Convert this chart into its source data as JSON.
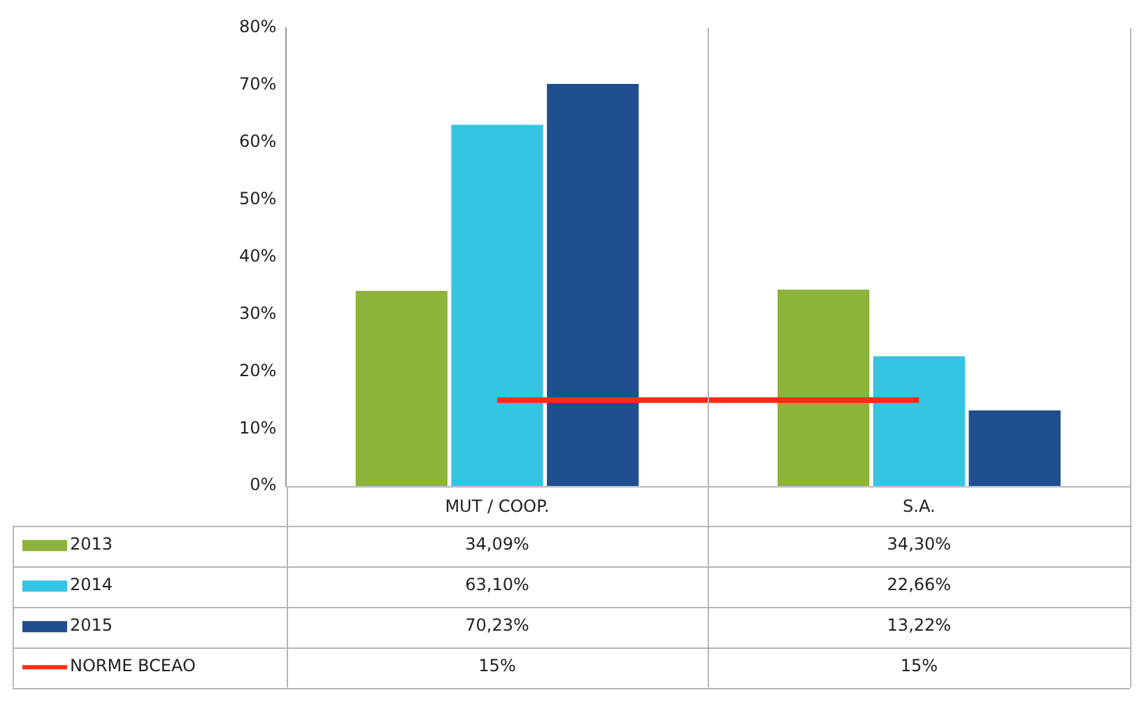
{
  "chart_data": {
    "type": "bar",
    "categories": [
      "MUT / COOP.",
      "S.A."
    ],
    "series": [
      {
        "name": "2013",
        "color": "#8db33a",
        "values": [
          34.09,
          34.3
        ],
        "value_labels": [
          "34,09%",
          "34,30%"
        ]
      },
      {
        "name": "2014",
        "color": "#35c4e2",
        "values": [
          63.1,
          22.66
        ],
        "value_labels": [
          "63,10%",
          "22,66%"
        ]
      },
      {
        "name": "2015",
        "color": "#1f4f8e",
        "values": [
          70.23,
          13.22
        ],
        "value_labels": [
          "70,23%",
          "13,22%"
        ]
      },
      {
        "name": "NORME BCEAO",
        "type": "line",
        "color": "#ff2a14",
        "values": [
          15,
          15
        ],
        "value_labels": [
          "15%",
          "15%"
        ],
        "marker": "none"
      }
    ],
    "ylim": [
      0,
      80
    ],
    "yticks": [
      {
        "value": 0,
        "label": "0%"
      },
      {
        "value": 10,
        "label": "10%"
      },
      {
        "value": 20,
        "label": "20%"
      },
      {
        "value": 30,
        "label": "30%"
      },
      {
        "value": 40,
        "label": "40%"
      },
      {
        "value": 50,
        "label": "50%"
      },
      {
        "value": 60,
        "label": "60%"
      },
      {
        "value": 70,
        "label": "70%"
      },
      {
        "value": 80,
        "label": "80%"
      }
    ],
    "grid": false,
    "legend": "bottom"
  }
}
